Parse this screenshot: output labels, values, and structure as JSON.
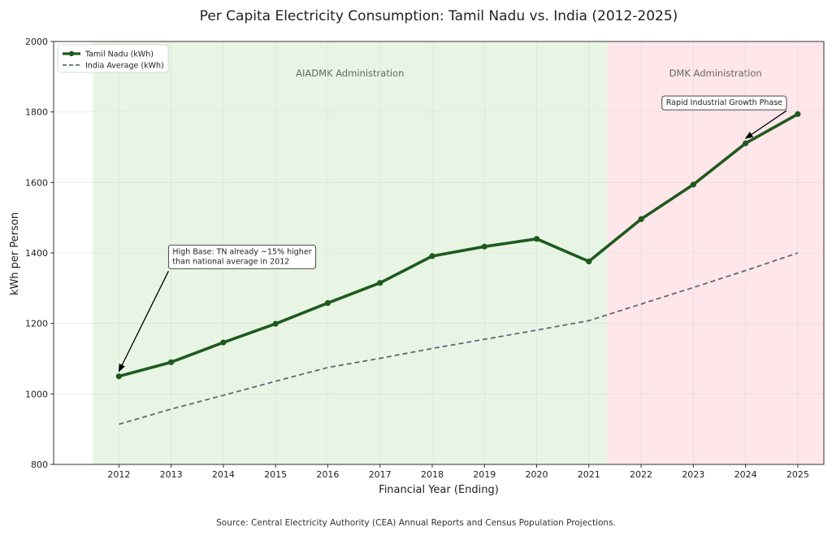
{
  "chart_data": {
    "type": "line",
    "title": "Per Capita Electricity Consumption: Tamil Nadu vs. India (2012-2025)",
    "xlabel": "Financial Year (Ending)",
    "ylabel": "kWh per Person",
    "x": [
      2012,
      2013,
      2014,
      2015,
      2016,
      2017,
      2018,
      2019,
      2020,
      2021,
      2022,
      2023,
      2024,
      2025
    ],
    "ylim": [
      800,
      2000
    ],
    "yticks": [
      800,
      1000,
      1200,
      1400,
      1600,
      1800,
      2000
    ],
    "grid": true,
    "legend_position": "top-left",
    "series": [
      {
        "name": "Tamil Nadu (kWh)",
        "style": "solid-markers",
        "color": "#1e5a1e",
        "values": [
          1050,
          1090,
          1146,
          1199,
          1258,
          1315,
          1391,
          1418,
          1440,
          1376,
          1496,
          1594,
          1711,
          1794
        ]
      },
      {
        "name": "India Average (kWh)",
        "style": "dashed",
        "color": "#5a6b7a",
        "values": [
          914,
          957,
          996,
          1036,
          1075,
          1101,
          1129,
          1155,
          1181,
          1208,
          1255,
          1302,
          1350,
          1400
        ]
      }
    ],
    "regions": [
      {
        "label": "AIADMK Administration",
        "from": 2011.5,
        "to": 2021.35,
        "color": "#e8f5e4"
      },
      {
        "label": "DMK Administration",
        "from": 2021.35,
        "to": 2025.5,
        "color": "#ffe6ea"
      }
    ],
    "annotations": [
      {
        "lines": [
          "High Base: TN already ~15% higher",
          "than national average in 2012"
        ],
        "target_x": 2012,
        "target_y": 1050,
        "text_x": 2012.95,
        "text_y": 1420
      },
      {
        "lines": [
          "Rapid Industrial Growth Phase"
        ],
        "target_x": 2024,
        "target_y": 1711,
        "text_x": 2022.4,
        "text_y": 1843
      }
    ]
  },
  "source_note": "Source: Central Electricity Authority (CEA) Annual Reports and Census Population Projections."
}
